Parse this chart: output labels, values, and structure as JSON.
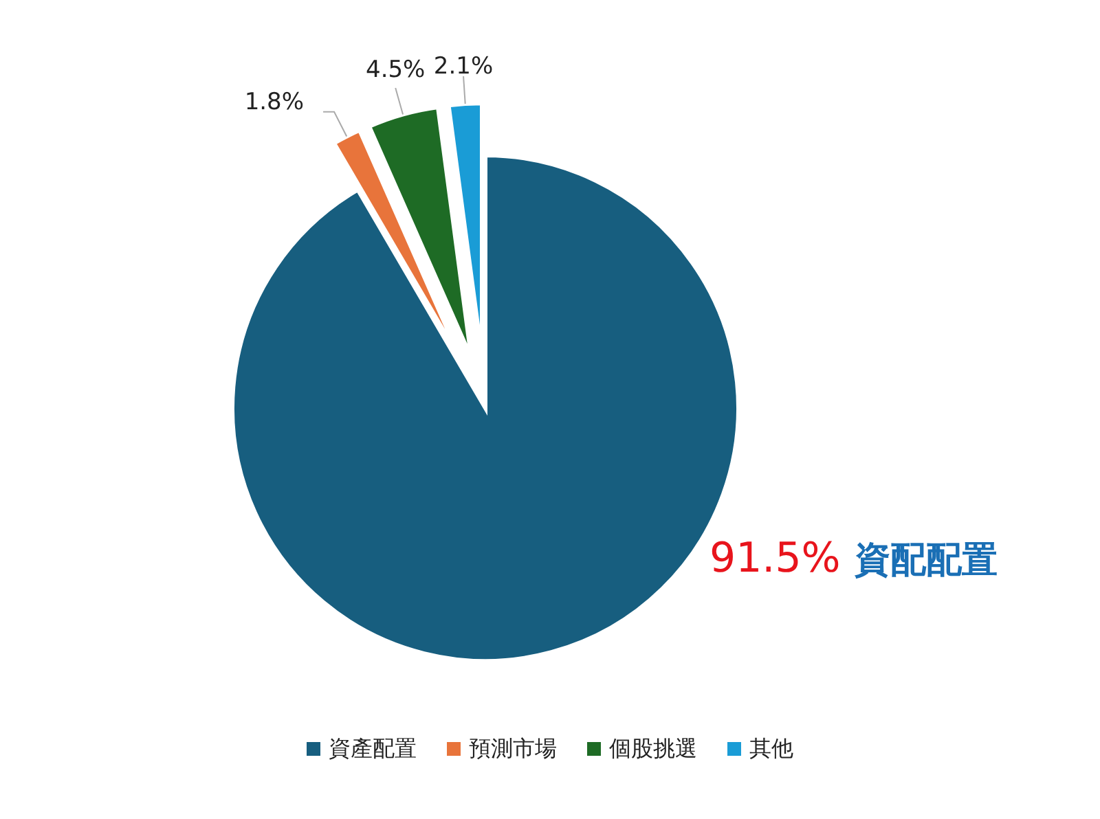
{
  "chart_data": {
    "type": "pie",
    "categories": [
      "資產配置",
      "預測市場",
      "個股挑選",
      "其他"
    ],
    "values": [
      91.5,
      1.8,
      4.5,
      2.1
    ],
    "colors": [
      "#175e7f",
      "#e8743b",
      "#1e6b25",
      "#1a9cd6"
    ],
    "value_labels": [
      "91.5%",
      "1.8%",
      "4.5%",
      "2.1%"
    ],
    "annotations": [
      "資配配置"
    ],
    "legend": "bottom"
  }
}
